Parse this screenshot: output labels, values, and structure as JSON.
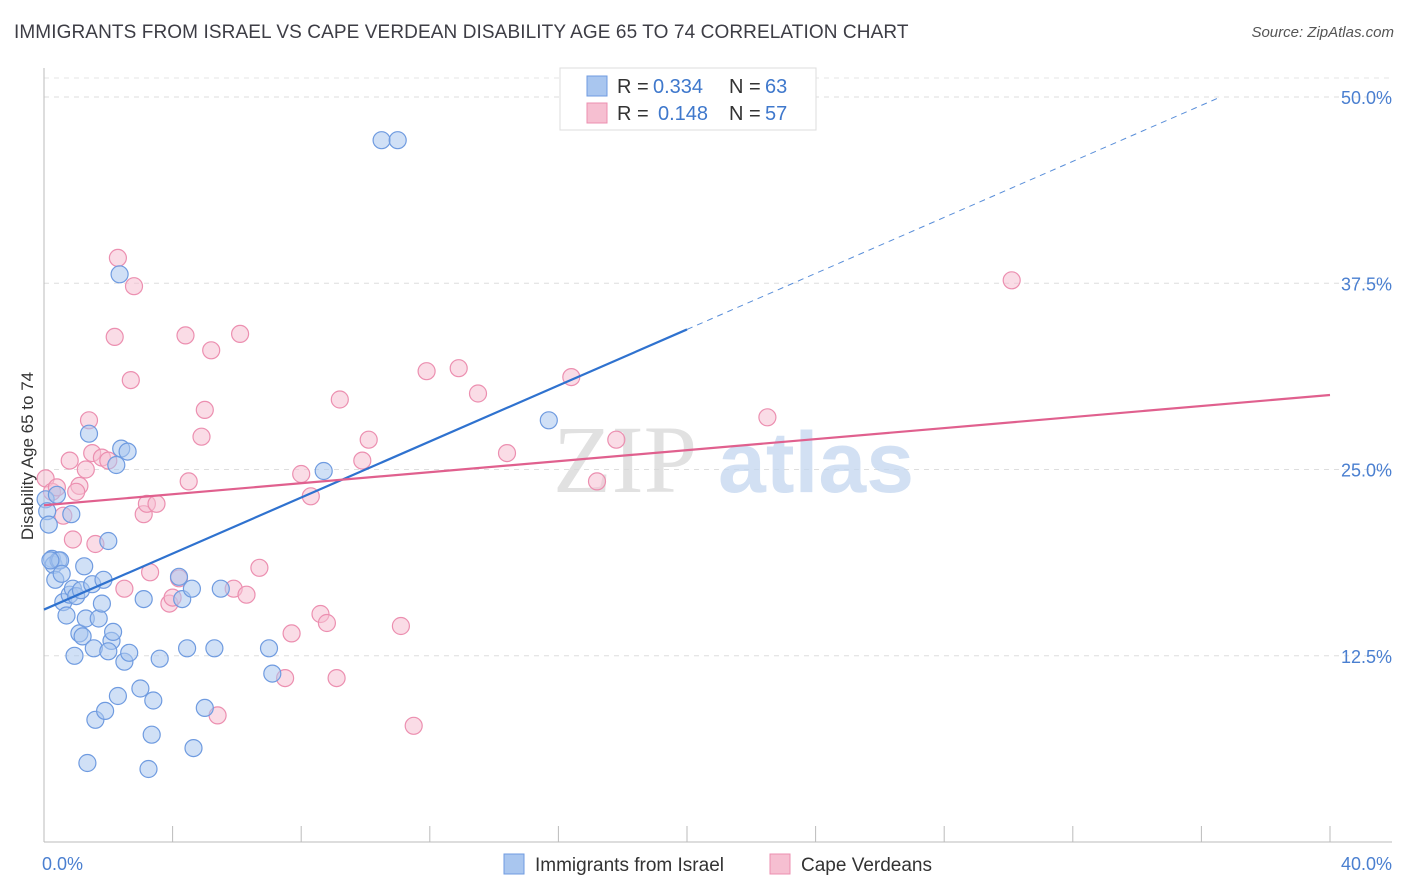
{
  "title": "IMMIGRANTS FROM ISRAEL VS CAPE VERDEAN DISABILITY AGE 65 TO 74 CORRELATION CHART",
  "source": "Source: ZipAtlas.com",
  "watermark": {
    "zip": "ZIP",
    "atlas": "atlas"
  },
  "colors": {
    "blue_fill": "#a9c6ef",
    "blue_stroke": "#6f9be0",
    "blue_line": "#2f72cf",
    "pink_fill": "#f6bfd1",
    "pink_stroke": "#ec8fb0",
    "pink_line": "#e0608e",
    "accent_text": "#3f78cc"
  },
  "legend_top": {
    "rows": [
      {
        "r_label": "R =",
        "r_value": "0.334",
        "n_label": "N =",
        "n_value": "63"
      },
      {
        "r_label": "R =",
        "r_value": "0.148",
        "n_label": "N =",
        "n_value": "57"
      }
    ]
  },
  "legend_bottom": [
    "Immigrants from Israel",
    "Cape Verdeans"
  ],
  "chart_data": {
    "type": "scatter",
    "ylabel": "Disability Age 65 to 74",
    "x_tick_labels": [
      "0.0%",
      "40.0%"
    ],
    "y_tick_labels": [
      "12.5%",
      "25.0%",
      "37.5%",
      "50.0%"
    ],
    "xlim": [
      0,
      40
    ],
    "ylim": [
      0,
      52
    ],
    "y_ticks": [
      12.5,
      25.0,
      37.5,
      50.0
    ],
    "grid": "horizontal dashed",
    "series": [
      {
        "name": "Immigrants from Israel",
        "color": "#a9c6ef",
        "points": [
          [
            0.05,
            23.0
          ],
          [
            0.1,
            22.2
          ],
          [
            0.15,
            21.3
          ],
          [
            0.25,
            19.0
          ],
          [
            0.3,
            18.6
          ],
          [
            0.35,
            17.6
          ],
          [
            0.4,
            23.3
          ],
          [
            0.45,
            18.9
          ],
          [
            0.5,
            18.9
          ],
          [
            0.55,
            18.0
          ],
          [
            0.6,
            16.1
          ],
          [
            0.7,
            15.2
          ],
          [
            0.8,
            16.6
          ],
          [
            0.85,
            22.0
          ],
          [
            0.9,
            17.0
          ],
          [
            0.95,
            12.5
          ],
          [
            1.0,
            16.5
          ],
          [
            1.1,
            14.0
          ],
          [
            1.15,
            16.9
          ],
          [
            1.2,
            13.8
          ],
          [
            1.25,
            18.5
          ],
          [
            1.3,
            15.0
          ],
          [
            1.35,
            5.3
          ],
          [
            1.4,
            27.4
          ],
          [
            1.5,
            17.3
          ],
          [
            1.55,
            13.0
          ],
          [
            1.6,
            8.2
          ],
          [
            1.7,
            15.0
          ],
          [
            1.8,
            16.0
          ],
          [
            1.85,
            17.6
          ],
          [
            1.9,
            8.8
          ],
          [
            2.0,
            20.2
          ],
          [
            2.1,
            13.5
          ],
          [
            2.15,
            14.1
          ],
          [
            2.25,
            25.3
          ],
          [
            2.3,
            9.8
          ],
          [
            2.35,
            38.1
          ],
          [
            2.4,
            26.4
          ],
          [
            2.5,
            12.1
          ],
          [
            2.6,
            26.2
          ],
          [
            2.65,
            12.7
          ],
          [
            3.0,
            10.3
          ],
          [
            3.1,
            16.3
          ],
          [
            3.25,
            4.9
          ],
          [
            3.35,
            7.2
          ],
          [
            3.4,
            9.5
          ],
          [
            3.6,
            12.3
          ],
          [
            4.2,
            17.8
          ],
          [
            4.3,
            16.3
          ],
          [
            4.45,
            13.0
          ],
          [
            4.6,
            17.0
          ],
          [
            4.65,
            6.3
          ],
          [
            5.0,
            9.0
          ],
          [
            5.3,
            13.0
          ],
          [
            5.5,
            17.0
          ],
          [
            7.0,
            13.0
          ],
          [
            7.1,
            11.3
          ],
          [
            8.7,
            24.9
          ],
          [
            10.5,
            47.1
          ],
          [
            11.0,
            47.1
          ],
          [
            15.7,
            28.3
          ],
          [
            0.2,
            18.9
          ],
          [
            2.0,
            12.8
          ]
        ]
      },
      {
        "name": "Cape Verdeans",
        "color": "#f6bfd1",
        "points": [
          [
            0.05,
            24.4
          ],
          [
            0.25,
            23.5
          ],
          [
            0.4,
            23.8
          ],
          [
            0.6,
            21.9
          ],
          [
            0.8,
            25.6
          ],
          [
            0.9,
            20.3
          ],
          [
            1.1,
            23.9
          ],
          [
            1.3,
            25.0
          ],
          [
            1.4,
            28.3
          ],
          [
            1.5,
            26.1
          ],
          [
            1.6,
            20.0
          ],
          [
            1.8,
            25.8
          ],
          [
            2.0,
            25.6
          ],
          [
            2.2,
            33.9
          ],
          [
            2.3,
            39.2
          ],
          [
            2.5,
            17.0
          ],
          [
            2.7,
            31.0
          ],
          [
            2.8,
            37.3
          ],
          [
            3.1,
            22.0
          ],
          [
            3.2,
            22.7
          ],
          [
            3.3,
            18.1
          ],
          [
            3.5,
            22.7
          ],
          [
            3.9,
            16.0
          ],
          [
            4.0,
            16.4
          ],
          [
            4.2,
            17.7
          ],
          [
            4.4,
            34.0
          ],
          [
            4.5,
            24.2
          ],
          [
            4.9,
            27.2
          ],
          [
            5.0,
            29.0
          ],
          [
            5.2,
            33.0
          ],
          [
            5.4,
            8.5
          ],
          [
            5.9,
            17.0
          ],
          [
            6.1,
            34.1
          ],
          [
            6.3,
            16.6
          ],
          [
            6.7,
            18.4
          ],
          [
            7.5,
            11.0
          ],
          [
            7.7,
            14.0
          ],
          [
            8.0,
            24.7
          ],
          [
            8.3,
            23.2
          ],
          [
            8.6,
            15.3
          ],
          [
            8.8,
            14.7
          ],
          [
            9.1,
            11.0
          ],
          [
            9.2,
            29.7
          ],
          [
            9.9,
            25.6
          ],
          [
            10.1,
            27.0
          ],
          [
            11.1,
            14.5
          ],
          [
            11.5,
            7.8
          ],
          [
            11.9,
            31.6
          ],
          [
            12.9,
            31.8
          ],
          [
            13.5,
            30.1
          ],
          [
            14.4,
            26.1
          ],
          [
            16.4,
            31.2
          ],
          [
            17.2,
            24.2
          ],
          [
            17.8,
            27.0
          ],
          [
            22.5,
            28.5
          ],
          [
            30.1,
            37.7
          ],
          [
            1.0,
            23.5
          ]
        ]
      }
    ],
    "trend_lines": [
      {
        "series": "Immigrants from Israel",
        "x": [
          0,
          20
        ],
        "y": [
          15.6,
          34.4
        ],
        "dashed_extension_to_x": 40
      },
      {
        "series": "Cape Verdeans",
        "x": [
          0,
          40
        ],
        "y": [
          22.6,
          30.0
        ]
      }
    ]
  }
}
